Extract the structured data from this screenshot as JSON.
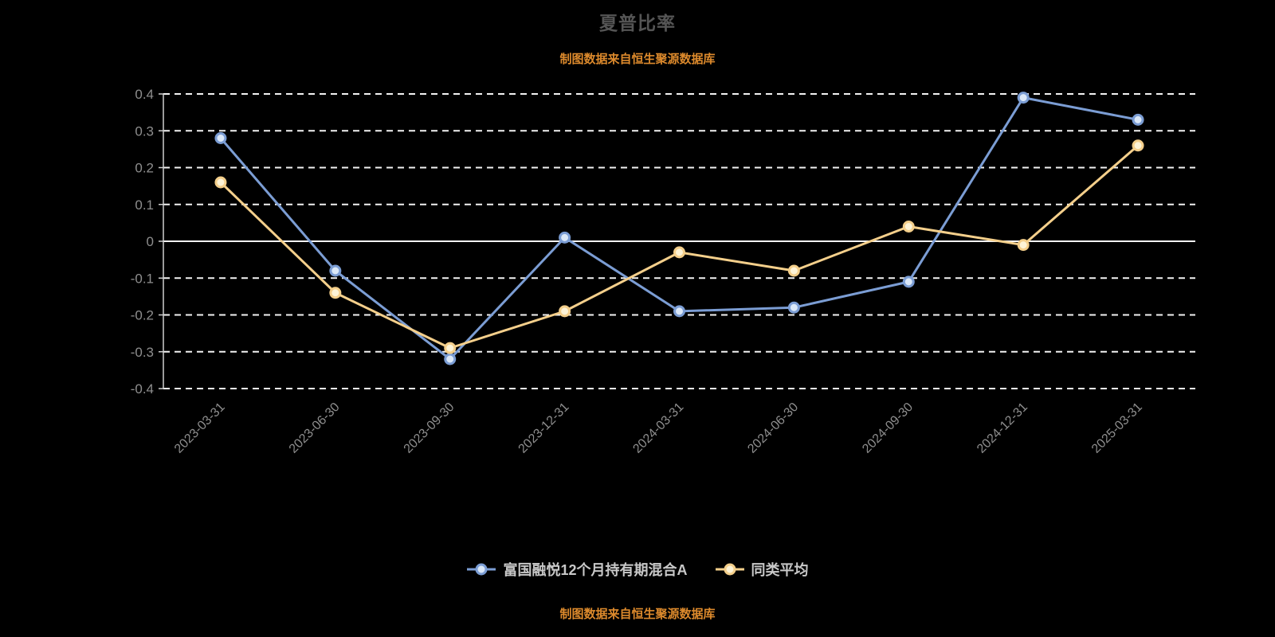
{
  "page": {
    "title": "夏普比率",
    "data_source_note": "制图数据来自恒生聚源数据库",
    "data_source_footer": "制图数据来自恒生聚源数据库"
  },
  "colors": {
    "background": "#000000",
    "title": "#555555",
    "subtitle_orange": "#dd8a2c",
    "axis_label": "#8e8e8e",
    "axis_line": "#cfcfcf",
    "grid": "#f2f2f2",
    "legend_text": "#c8c8c8",
    "series_blue": "#7b9dd4",
    "series_blue_fill": "#dbe8f8",
    "series_yellow": "#f4cf8b",
    "series_yellow_fill": "#fdf3d6"
  },
  "chart_data": {
    "type": "line",
    "title": "夏普比率",
    "categories": [
      "2023-03-31",
      "2023-06-30",
      "2023-09-30",
      "2023-12-31",
      "2024-03-31",
      "2024-06-30",
      "2024-09-30",
      "2024-12-31",
      "2025-03-31"
    ],
    "series": [
      {
        "name": "富国融悦12个月持有期混合A",
        "color_key": "series_blue",
        "values": [
          0.28,
          -0.08,
          -0.32,
          0.01,
          -0.19,
          -0.18,
          -0.11,
          0.39,
          0.33
        ]
      },
      {
        "name": "同类平均",
        "color_key": "series_yellow",
        "values": [
          0.16,
          -0.14,
          -0.29,
          -0.19,
          -0.03,
          -0.08,
          0.04,
          -0.01,
          0.26
        ]
      }
    ],
    "xlabel": "",
    "ylabel": "",
    "ylim": [
      -0.4,
      0.4
    ],
    "ytick_step": 0.1,
    "grid": "horizontal-dashed, zero line solid",
    "legend_position": "bottom",
    "x_label_rotation": 45
  }
}
